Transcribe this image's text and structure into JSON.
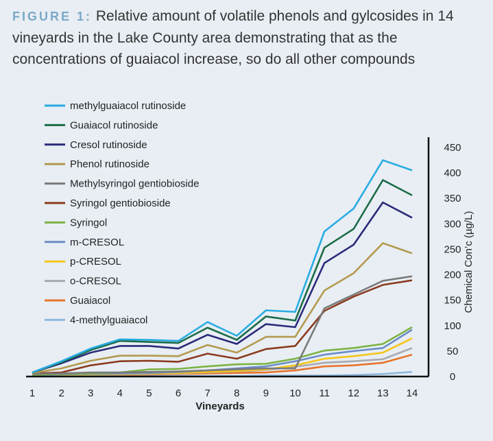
{
  "caption": {
    "label": "FIGURE 1:",
    "text": "Relative amount of volatile phenols and gylcosides in 14 vineyards in the Lake County area demonstrating that as the concentrations of guaiacol increase, so do all other compounds"
  },
  "chart_data": {
    "type": "line",
    "title": "",
    "xlabel": "Vineyards",
    "ylabel": "Chemical Con’c (µg/L)",
    "x": [
      1,
      2,
      3,
      4,
      5,
      6,
      7,
      8,
      9,
      10,
      11,
      12,
      13,
      14
    ],
    "xlim": [
      1,
      14
    ],
    "ylim": [
      0,
      450
    ],
    "yticks": [
      0,
      50,
      100,
      150,
      200,
      250,
      300,
      350,
      400,
      450
    ],
    "y_axis_side": "right",
    "legend_position": "top-left",
    "grid": false,
    "series": [
      {
        "name": "methylguaiacol rutinoside",
        "color": "#29abe2",
        "values": [
          8,
          30,
          55,
          73,
          72,
          70,
          107,
          80,
          130,
          127,
          285,
          330,
          425,
          405
        ]
      },
      {
        "name": "Guaiacol rutinoside",
        "color": "#1b6b47",
        "values": [
          8,
          28,
          52,
          70,
          68,
          66,
          96,
          72,
          118,
          110,
          253,
          290,
          386,
          356
        ]
      },
      {
        "name": "Cresol rutinoside",
        "color": "#2a2a7a",
        "values": [
          8,
          26,
          47,
          60,
          60,
          55,
          82,
          64,
          103,
          97,
          223,
          259,
          342,
          312
        ]
      },
      {
        "name": "Phenol rutinoside",
        "color": "#b39a4e",
        "values": [
          7,
          16,
          31,
          41,
          41,
          40,
          62,
          47,
          78,
          78,
          169,
          203,
          262,
          242
        ]
      },
      {
        "name": "Methylsyringol gentiobioside",
        "color": "#7a7a7a",
        "values": [
          5,
          6,
          8,
          8,
          9,
          10,
          12,
          14,
          16,
          16,
          134,
          161,
          188,
          197
        ]
      },
      {
        "name": "Syringol gentiobioside",
        "color": "#8b3a1e",
        "values": [
          6,
          8,
          22,
          30,
          31,
          29,
          45,
          35,
          54,
          60,
          129,
          157,
          180,
          189
        ]
      },
      {
        "name": "Syringol",
        "color": "#7cb342",
        "values": [
          3,
          5,
          6,
          8,
          14,
          15,
          20,
          24,
          25,
          35,
          51,
          56,
          64,
          97
        ]
      },
      {
        "name": "m-CRESOL",
        "color": "#6a8cc7",
        "values": [
          2,
          4,
          5,
          6,
          7,
          9,
          12,
          16,
          20,
          30,
          43,
          50,
          56,
          92
        ]
      },
      {
        "name": "p-CRESOL",
        "color": "#f5c518",
        "values": [
          2,
          3,
          4,
          5,
          6,
          7,
          9,
          11,
          14,
          22,
          35,
          40,
          47,
          75
        ]
      },
      {
        "name": "o-CRESOL",
        "color": "#a8a8b0",
        "values": [
          1,
          2,
          3,
          4,
          5,
          6,
          8,
          10,
          13,
          19,
          27,
          30,
          34,
          56
        ]
      },
      {
        "name": "Guaiacol",
        "color": "#e8732a",
        "values": [
          1,
          2,
          3,
          3,
          4,
          5,
          6,
          7,
          8,
          12,
          20,
          22,
          27,
          43
        ]
      },
      {
        "name": "4-methylguaiacol",
        "color": "#8fb8de",
        "values": [
          0,
          1,
          1,
          1,
          1,
          1,
          1,
          1,
          2,
          2,
          2,
          3,
          5,
          9
        ]
      }
    ]
  }
}
